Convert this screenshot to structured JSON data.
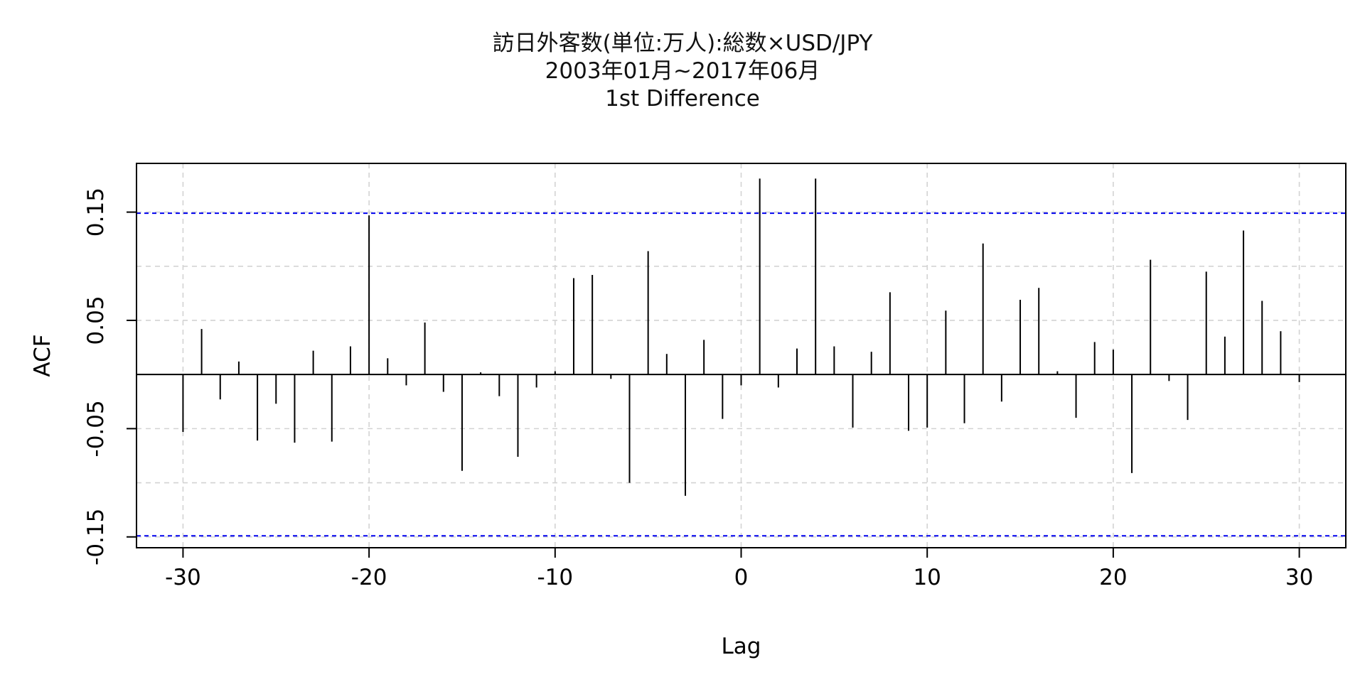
{
  "chart_data": {
    "type": "bar",
    "title_lines": [
      "訪日外客数(単位:万人):総数×USD/JPY",
      "2003年01月~2017年06月",
      "1st Difference"
    ],
    "xlabel": "Lag",
    "ylabel": "ACF",
    "xlim": [
      -32.5,
      32.5
    ],
    "ylim": [
      -0.16,
      0.195
    ],
    "x_ticks": [
      -30,
      -20,
      -10,
      0,
      10,
      20,
      30
    ],
    "x_tick_labels": [
      "-30",
      "-20",
      "-10",
      "0",
      "10",
      "20",
      "30"
    ],
    "y_ticks": [
      -0.15,
      -0.05,
      0.05,
      0.15
    ],
    "y_tick_labels": [
      "-0.15",
      "-0.05",
      "0.05",
      "0.15"
    ],
    "y_grid": [
      -0.15,
      -0.1,
      -0.05,
      0,
      0.05,
      0.1,
      0.15
    ],
    "confidence_band": 0.149,
    "grid": true,
    "colors": {
      "stem": "#000000",
      "band": "#0000ee",
      "grid": "#d3d3d3"
    },
    "lags": [
      -30,
      -29,
      -28,
      -27,
      -26,
      -25,
      -24,
      -23,
      -22,
      -21,
      -20,
      -19,
      -18,
      -17,
      -16,
      -15,
      -14,
      -13,
      -12,
      -11,
      -10,
      -9,
      -8,
      -7,
      -6,
      -5,
      -4,
      -3,
      -2,
      -1,
      0,
      1,
      2,
      3,
      4,
      5,
      6,
      7,
      8,
      9,
      10,
      11,
      12,
      13,
      14,
      15,
      16,
      17,
      18,
      19,
      20,
      21,
      22,
      23,
      24,
      25,
      26,
      27,
      28,
      29,
      30
    ],
    "acf": [
      -0.053,
      0.042,
      -0.023,
      0.012,
      -0.061,
      -0.027,
      -0.063,
      0.022,
      -0.062,
      0.026,
      0.147,
      0.015,
      -0.01,
      0.048,
      -0.016,
      -0.089,
      0.002,
      -0.02,
      -0.076,
      -0.012,
      0.003,
      0.089,
      0.092,
      -0.004,
      -0.1,
      0.114,
      0.019,
      -0.112,
      0.032,
      -0.041,
      -0.01,
      0.181,
      -0.012,
      0.024,
      0.181,
      0.026,
      -0.049,
      0.021,
      0.076,
      -0.052,
      -0.049,
      0.059,
      -0.045,
      0.121,
      -0.025,
      0.069,
      0.08,
      0.003,
      -0.04,
      0.03,
      0.023,
      -0.091,
      0.106,
      -0.006,
      -0.042,
      0.095,
      0.035,
      0.133,
      0.068,
      0.04,
      -0.007
    ]
  }
}
